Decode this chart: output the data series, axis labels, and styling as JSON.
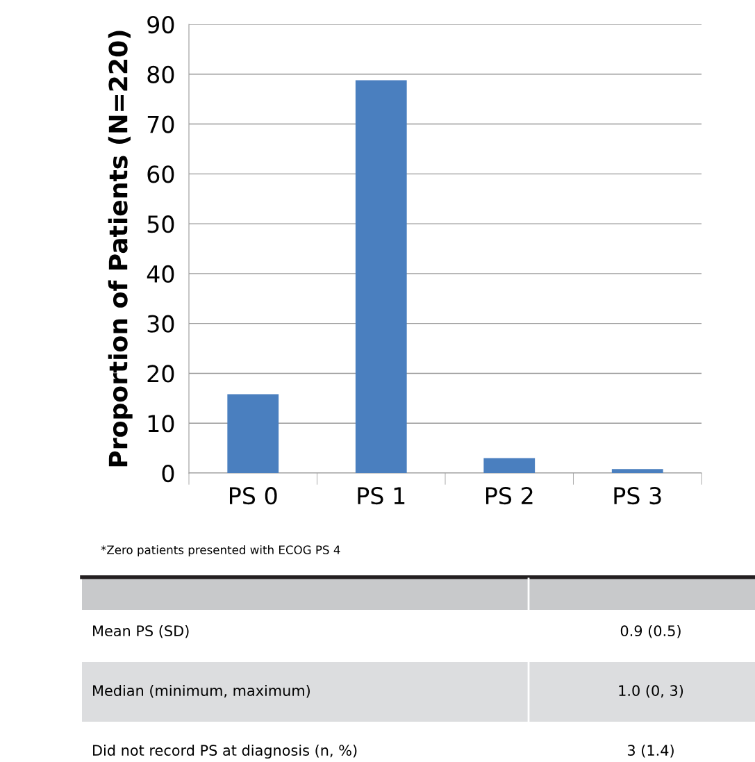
{
  "chart_data": {
    "type": "bar",
    "ylabel": "Proportion of Patients (N=220)",
    "categories": [
      "PS 0",
      "PS 1",
      "PS 2",
      "PS 3"
    ],
    "values": [
      15.8,
      78.8,
      3.0,
      0.8
    ],
    "color": "#4a7fbf",
    "ylim": [
      0,
      90
    ],
    "yticks": [
      0,
      10,
      20,
      30,
      40,
      50,
      60,
      70,
      80,
      90
    ],
    "grid": "y",
    "legend": false,
    "annotations": [
      "*Zero patients presented with ECOG PS 4",
      "Mean PS (SD)",
      "0.9 (0.5)",
      "Median (minimum, maximum)",
      "1.0 (0, 3)",
      "Did not record PS at diagnosis (n, %)",
      "3 (1.4)"
    ]
  }
}
